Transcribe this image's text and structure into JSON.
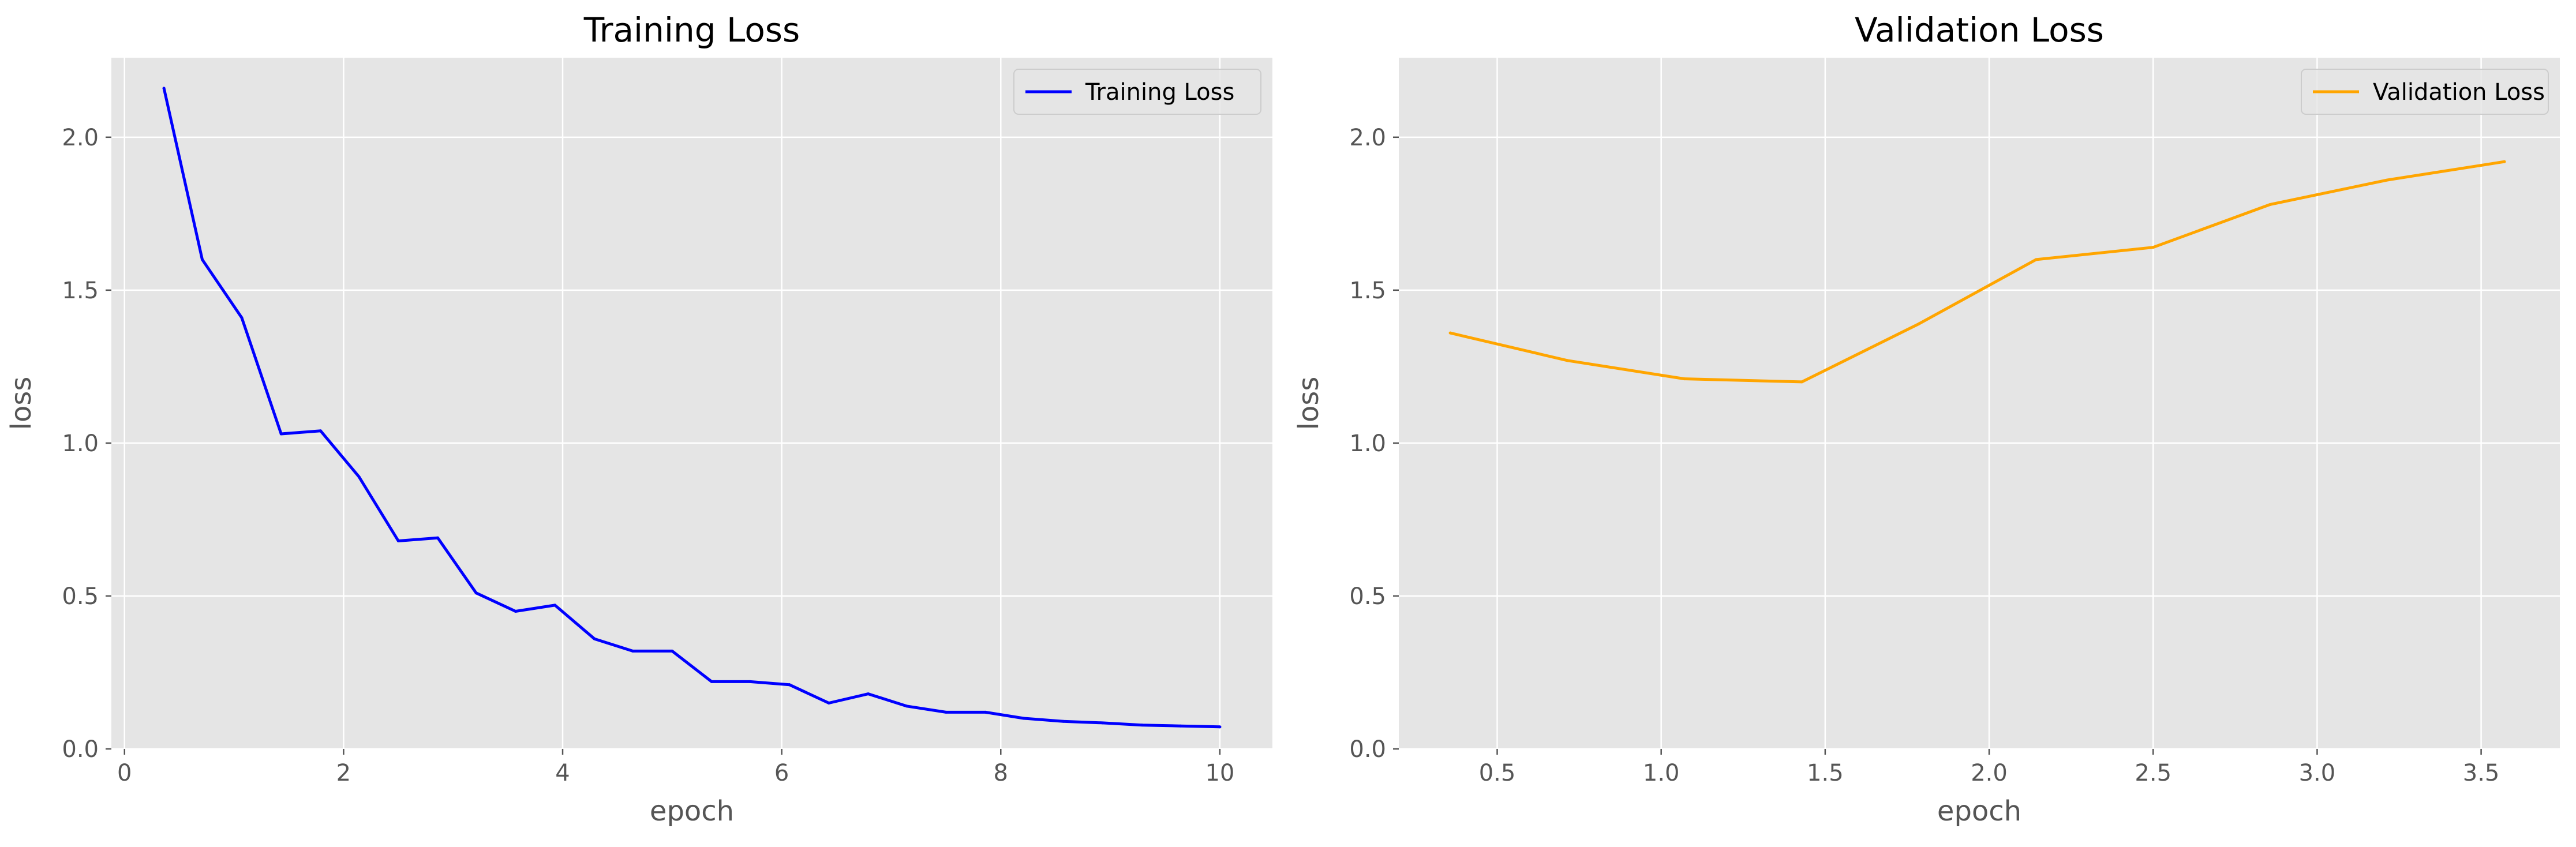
{
  "chart_data": [
    {
      "type": "line",
      "title": "Training Loss",
      "xlabel": "epoch",
      "ylabel": "loss",
      "xlim": [
        -0.12,
        10.48
      ],
      "ylim": [
        0.0,
        2.26
      ],
      "xticks": [
        0,
        2,
        4,
        6,
        8,
        10
      ],
      "xtick_labels": [
        "0",
        "2",
        "4",
        "6",
        "8",
        "10"
      ],
      "yticks": [
        0.0,
        0.5,
        1.0,
        1.5,
        2.0
      ],
      "ytick_labels": [
        "0.0",
        "0.5",
        "1.0",
        "1.5",
        "2.0"
      ],
      "grid": true,
      "legend_position": "top-right",
      "series": [
        {
          "name": "Training Loss",
          "color": "#0000ff",
          "x": [
            0.36,
            0.71,
            1.07,
            1.43,
            1.79,
            2.14,
            2.5,
            2.86,
            3.21,
            3.57,
            3.93,
            4.29,
            4.64,
            5.0,
            5.36,
            5.71,
            6.07,
            6.43,
            6.79,
            7.14,
            7.5,
            7.86,
            8.21,
            8.57,
            8.93,
            9.29,
            9.64,
            10.0
          ],
          "y": [
            2.16,
            1.6,
            1.41,
            1.03,
            1.04,
            0.89,
            0.68,
            0.69,
            0.51,
            0.45,
            0.47,
            0.36,
            0.32,
            0.32,
            0.22,
            0.22,
            0.21,
            0.15,
            0.18,
            0.14,
            0.12,
            0.12,
            0.1,
            0.09,
            0.085,
            0.078,
            0.075,
            0.072
          ]
        }
      ]
    },
    {
      "type": "line",
      "title": "Validation Loss",
      "xlabel": "epoch",
      "ylabel": "loss",
      "xlim": [
        0.2,
        3.74
      ],
      "ylim": [
        0.0,
        2.26
      ],
      "xticks": [
        0.5,
        1.0,
        1.5,
        2.0,
        2.5,
        3.0,
        3.5
      ],
      "xtick_labels": [
        "0.5",
        "1.0",
        "1.5",
        "2.0",
        "2.5",
        "3.0",
        "3.5"
      ],
      "yticks": [
        0.0,
        0.5,
        1.0,
        1.5,
        2.0
      ],
      "ytick_labels": [
        "0.0",
        "0.5",
        "1.0",
        "1.5",
        "2.0"
      ],
      "grid": true,
      "legend_position": "top-right",
      "series": [
        {
          "name": "Validation Loss",
          "color": "#ffa500",
          "x": [
            0.357,
            0.714,
            1.071,
            1.429,
            1.786,
            2.143,
            2.5,
            2.857,
            3.214,
            3.571
          ],
          "y": [
            1.36,
            1.27,
            1.21,
            1.2,
            1.39,
            1.6,
            1.64,
            1.78,
            1.86,
            1.92
          ]
        }
      ]
    }
  ],
  "style": {
    "axes_background": "#e5e5e5",
    "grid_color": "#ffffff",
    "text_color": "#555555"
  }
}
